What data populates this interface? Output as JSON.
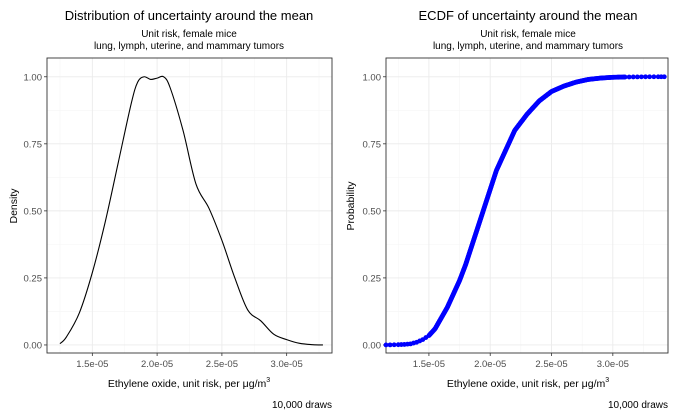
{
  "chart_data": [
    {
      "type": "line",
      "title": "Distribution of uncertainty around the mean",
      "subtitle_line1": "Unit risk, female mice",
      "subtitle_line2": "lung, lymph, uterine, and mammary tumors",
      "xlabel": "Ethylene oxide, unit risk, per μg/m",
      "xlabel_sup": "3",
      "ylabel": "Density",
      "caption": "10,000 draws",
      "xlim": [
        1.15e-05,
        3.35e-05
      ],
      "ylim": [
        -0.03,
        1.07
      ],
      "x_ticks": [
        1.5e-05,
        2e-05,
        2.5e-05,
        3e-05
      ],
      "x_tick_labels": [
        "1.5e-05",
        "2.0e-05",
        "2.5e-05",
        "3.0e-05"
      ],
      "y_ticks": [
        0,
        0.25,
        0.5,
        0.75,
        1.0
      ],
      "y_tick_labels": [
        "0.00",
        "0.25",
        "0.50",
        "0.75",
        "1.00"
      ],
      "grid": true,
      "series_color": "#000000",
      "x": [
        1.25e-05,
        1.3e-05,
        1.4e-05,
        1.5e-05,
        1.6e-05,
        1.7e-05,
        1.8e-05,
        1.85e-05,
        1.9e-05,
        1.95e-05,
        2e-05,
        2.05e-05,
        2.1e-05,
        2.2e-05,
        2.3e-05,
        2.4e-05,
        2.5e-05,
        2.6e-05,
        2.7e-05,
        2.8e-05,
        2.9e-05,
        3e-05,
        3.1e-05,
        3.2e-05,
        3.28e-05
      ],
      "y": [
        0.005,
        0.03,
        0.12,
        0.27,
        0.46,
        0.68,
        0.9,
        0.98,
        1.0,
        0.99,
        0.995,
        1.0,
        0.96,
        0.8,
        0.6,
        0.51,
        0.39,
        0.25,
        0.13,
        0.09,
        0.04,
        0.02,
        0.006,
        0.001,
        0.0
      ]
    },
    {
      "type": "scatter",
      "title": "ECDF of uncertainty around the mean",
      "subtitle_line1": "Unit risk, female mice",
      "subtitle_line2": "lung, lymph, uterine, and mammary tumors",
      "xlabel": "Ethylene oxide, unit risk, per μg/m",
      "xlabel_sup": "3",
      "ylabel": "Probability",
      "caption": "10,000 draws",
      "xlim": [
        1.15e-05,
        3.45e-05
      ],
      "ylim": [
        -0.03,
        1.07
      ],
      "x_ticks": [
        1.5e-05,
        2e-05,
        2.5e-05,
        3e-05
      ],
      "x_tick_labels": [
        "1.5e-05",
        "2.0e-05",
        "2.5e-05",
        "3.0e-05"
      ],
      "y_ticks": [
        0,
        0.25,
        0.5,
        0.75,
        1.0
      ],
      "y_tick_labels": [
        "0.00",
        "0.25",
        "0.50",
        "0.75",
        "1.00"
      ],
      "grid": true,
      "series_color": "#0000ff",
      "x": [
        1.15e-05,
        1.25e-05,
        1.3e-05,
        1.35e-05,
        1.4e-05,
        1.45e-05,
        1.5e-05,
        1.55e-05,
        1.6e-05,
        1.65e-05,
        1.7e-05,
        1.75e-05,
        1.8e-05,
        1.85e-05,
        1.9e-05,
        1.95e-05,
        2e-05,
        2.05e-05,
        2.1e-05,
        2.15e-05,
        2.2e-05,
        2.25e-05,
        2.3e-05,
        2.4e-05,
        2.5e-05,
        2.6e-05,
        2.7e-05,
        2.8e-05,
        2.9e-05,
        3e-05,
        3.1e-05,
        3.2e-05,
        3.3e-05,
        3.37e-05,
        3.42e-05
      ],
      "y": [
        0.0,
        0.001,
        0.002,
        0.004,
        0.01,
        0.02,
        0.035,
        0.06,
        0.1,
        0.14,
        0.19,
        0.24,
        0.3,
        0.37,
        0.44,
        0.51,
        0.58,
        0.65,
        0.7,
        0.75,
        0.8,
        0.83,
        0.86,
        0.91,
        0.945,
        0.965,
        0.98,
        0.99,
        0.995,
        0.998,
        0.999,
        0.9995,
        1.0,
        1.0,
        1.0
      ]
    }
  ]
}
